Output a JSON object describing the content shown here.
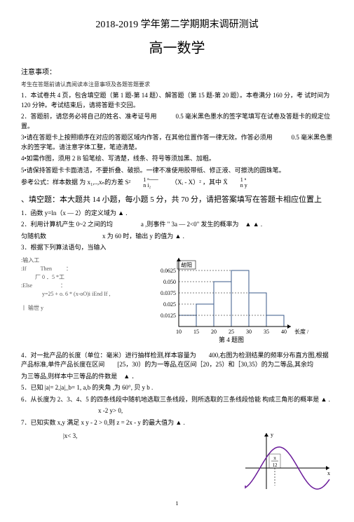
{
  "header": {
    "line1": "2018-2019 学年第二学期期末调研测试",
    "line2": "高一数学"
  },
  "notice_title": "注意事项：",
  "notice_sub": "考生在答题前请认真阅读本注意事项及各题答题要求",
  "notices": [
    "1．本试卷共 4 页，包含填空题（第 1 题-第 14 题）、解答题（第 15 题-第 20 题）。本卷满分 160 分，考 试时间为 120 分钟。考试结束后，请将答题卡交回。",
    "2．答题前，请您务必将自己的姓名、准考证号用　　　0.5 毫米黑色墨水的签字笔填写在试卷及答题卡的规定位置。",
    "3•请在答题卡上按照顺序在对应的答题区域内作答，在其他位置作答一律无效。作答必须用　　　0.5 毫米黑色墨水的签字笔。请注意字体工整，笔迹清楚。",
    "4•如需作图，须用 2 B 铅笔绘、写清楚，线条、符号等须加黑、加粗。",
    "5•请保持答题卡卡面清洁，不要折叠、破损。一律不准使用胶带纸、修正液、可擦洗的圆珠笔。"
  ],
  "formula": {
    "label": "参考公式：样本数据 为 x₁,..,xₙ的方差 S²",
    "mid_top": "1 ⁿ⸺",
    "mid_bot": "n i₂",
    "r1": "（Xᵢ - X）² ，其中 X̄",
    "r2_top": "1 ⁿ",
    "r2_bot": "n y"
  },
  "fill_title": "、填空题：本大题共 14 小题，每小题 5 分，共 70 分，请把答案填写在答题卡相应位置上",
  "q1": "1．函数 y=ln（x — 2）的定义域为 ▲ .",
  "q2a": "2．利用计算机产生 0~2 之间的均",
  "q2b": "a ,则事件 \" 3a — 2<0\" 发生的概率为　▲ ▲ .",
  "q2c": "匀随机数",
  "q2d": "x 为 60 时，输出 y 的值为 ▲ .",
  "q3": "3．根据下列算法语句，当输入",
  "code": {
    "l1": ":输入工",
    "l2": ":If",
    "l3": "Then",
    "l4": "：",
    "l5": "厂 0 ．5 *工",
    "l6": ":Else",
    "l7": "：",
    "l8": "y=25 + o. 6 * (x-oO)i iEnd If ,",
    "l9": "丨 输世 y"
  },
  "chart": {
    "ylabel": "刼阳",
    "yvals": [
      "0.0625",
      "0.050",
      "0.0375",
      "0.025",
      "0.0125"
    ],
    "xvals": [
      "10",
      "15",
      "20",
      "25",
      "30",
      "35",
      "40"
    ],
    "xlabel": "长度 / 毫米",
    "caption": "第 4 题图",
    "bars": [
      {
        "x": 10,
        "h": 0.0125
      },
      {
        "x": 15,
        "h": 0.025
      },
      {
        "x": 20,
        "h": 0.05
      },
      {
        "x": 25,
        "h": 0.0625
      },
      {
        "x": 30,
        "h": 0.0375
      },
      {
        "x": 35,
        "h": 0.0125
      }
    ],
    "colors": {
      "bar_stroke": "#3a5a8a",
      "bar_fill": "#b8c5dc",
      "axis": "#000"
    }
  },
  "q4a": "4．对一批产品的长度（单位：毫米）进行抽样检测,样本容量为　　400,右图为检测结果的频率分布直方图,根据产品标准,单件产品长度在区间　　[25，30）的为一等品,在区间［20，25）和［30,35）的为二等品,其余均",
  "q4b": "为三等品,则样本中三等品的件数是　▲ ．",
  "q5": "5．已知 |a|= 2,|a|_b= 1, a,b 的夹角 ,为 60°, 贝 y b .",
  "q6a": "6．从长度为 2、3、4、5 的四条线段中随机地选取三条线段，则所选取的三条线段恰能 构成三角形的概率是 ▲ .",
  "q6b": "x -2 y> 0,",
  "q7a": "7．已知实数 x,y 满足 x y - 2 > 0,则 z = 2x - y 的最大值为 ▲ .",
  "q7b": "|x< 3,",
  "curve": {
    "label_pi12": "π/12",
    "stroke": "#6a1b9a",
    "axis": "#000"
  },
  "page": "1"
}
